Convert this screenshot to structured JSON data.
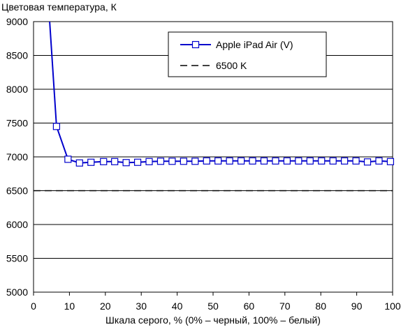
{
  "chart_data": {
    "type": "line",
    "title": "Цветовая температура, К",
    "xlabel": "Шкала серого, % (0% – черный, 100% – белый)",
    "ylabel": "",
    "xlim": [
      0,
      100
    ],
    "ylim": [
      5000,
      9000
    ],
    "xticks": [
      0,
      10,
      20,
      30,
      40,
      50,
      60,
      70,
      80,
      90,
      100
    ],
    "yticks": [
      5000,
      5500,
      6000,
      6500,
      7000,
      7500,
      8000,
      8500,
      9000
    ],
    "grid": "horizontal",
    "legend_position": "top-right",
    "series": [
      {
        "name": "Apple iPad Air (V)",
        "color": "#0000cc",
        "marker": "open-square",
        "x": [
          4.5,
          6.4,
          9.6,
          12.8,
          16.0,
          19.5,
          22.6,
          25.8,
          29.0,
          32.2,
          35.4,
          38.6,
          41.8,
          45.0,
          48.2,
          51.4,
          54.6,
          57.8,
          61.0,
          64.2,
          67.4,
          70.6,
          73.8,
          77.0,
          80.2,
          83.4,
          86.6,
          89.8,
          93.0,
          96.2,
          99.4
        ],
        "y": [
          9000,
          7450,
          6965,
          6910,
          6920,
          6930,
          6930,
          6915,
          6920,
          6930,
          6935,
          6935,
          6935,
          6935,
          6940,
          6940,
          6940,
          6940,
          6940,
          6940,
          6940,
          6940,
          6940,
          6940,
          6940,
          6940,
          6940,
          6940,
          6925,
          6940,
          6930
        ]
      },
      {
        "name": "6500 K",
        "color": "#000000",
        "style": "dashed",
        "x": [
          0,
          100
        ],
        "y": [
          6500,
          6500
        ]
      }
    ]
  }
}
